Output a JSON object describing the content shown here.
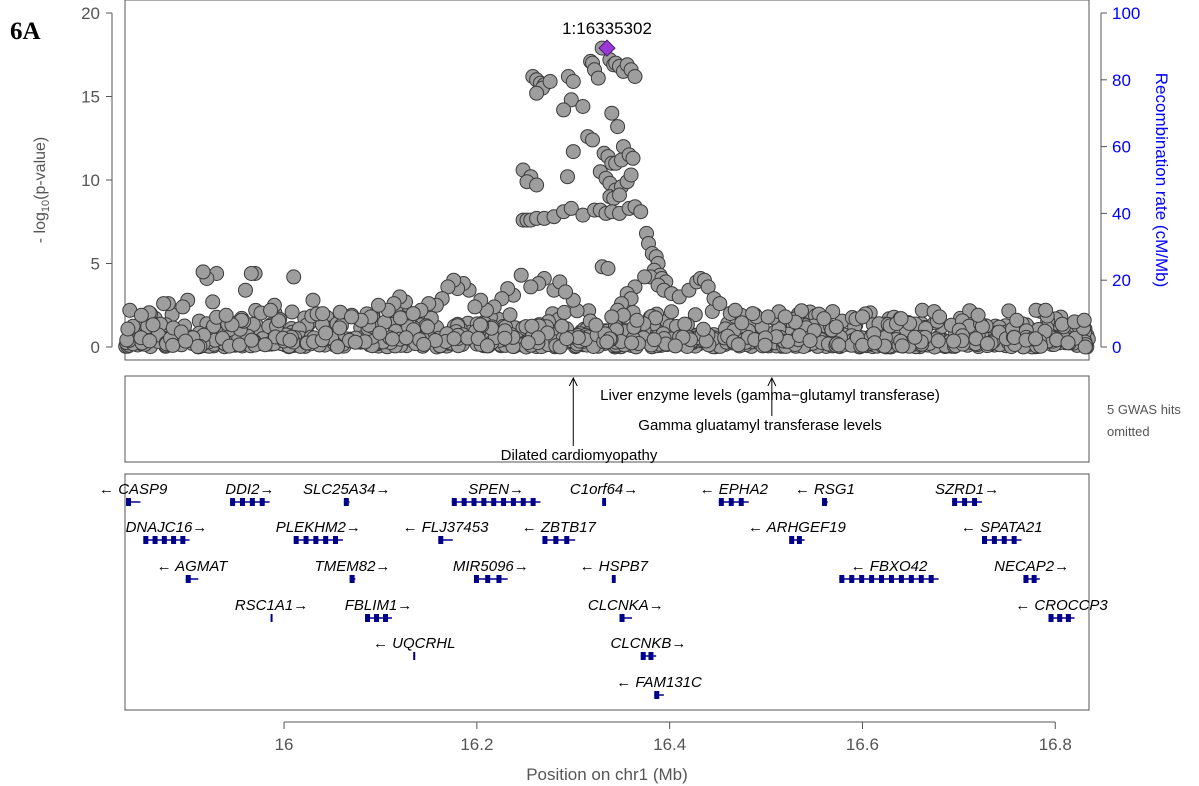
{
  "panel_tag": "6A",
  "colors": {
    "point_fill": "#9e9e9e",
    "point_stroke": "#3a3a3a",
    "lead_fill": "#9a38d8",
    "recomb_axis": "#0000ff",
    "gene": "#00008b"
  },
  "chart_data": {
    "type": "scatter",
    "xlabel": "Position on chr1 (Mb)",
    "ylabel_left": "- log10(p-value)",
    "ylabel_right": "Recombination rate (cM/Mb)",
    "xlim": [
      15.835,
      16.835
    ],
    "xticks": [
      16,
      16.2,
      16.4,
      16.6,
      16.8
    ],
    "xtick_labels": [
      "16",
      "16.2",
      "16.4",
      "16.6",
      "16.8"
    ],
    "ylim": [
      -0.5,
      20
    ],
    "yticks": [
      0,
      5,
      10,
      15,
      20
    ],
    "ytick_labels": [
      "0",
      "5",
      "10",
      "15",
      "20"
    ],
    "ylim_right": [
      0,
      100
    ],
    "yticks_right_labels": [
      "0",
      "20",
      "40",
      "60",
      "80",
      "100"
    ],
    "lead_snp": {
      "label": "1:16335302",
      "x": 16.335,
      "y": 17.9
    },
    "series": [
      {
        "kind": "high_points",
        "points": [
          [
            16.258,
            16.2
          ],
          [
            16.262,
            16.0
          ],
          [
            16.266,
            15.8
          ],
          [
            16.27,
            15.7
          ],
          [
            16.268,
            15.5
          ],
          [
            16.262,
            15.2
          ],
          [
            16.276,
            15.9
          ],
          [
            16.295,
            16.2
          ],
          [
            16.3,
            15.9
          ],
          [
            16.318,
            17.1
          ],
          [
            16.32,
            17.0
          ],
          [
            16.322,
            16.6
          ],
          [
            16.326,
            16.1
          ],
          [
            16.33,
            17.9
          ],
          [
            16.338,
            17.2
          ],
          [
            16.342,
            16.9
          ],
          [
            16.344,
            17.0
          ],
          [
            16.348,
            16.8
          ],
          [
            16.352,
            16.5
          ],
          [
            16.356,
            16.9
          ],
          [
            16.36,
            16.6
          ],
          [
            16.364,
            16.2
          ],
          [
            16.298,
            14.8
          ],
          [
            16.29,
            14.2
          ],
          [
            16.31,
            14.4
          ],
          [
            16.34,
            14.0
          ],
          [
            16.346,
            13.2
          ],
          [
            16.352,
            12.0
          ],
          [
            16.315,
            12.6
          ],
          [
            16.32,
            12.4
          ],
          [
            16.3,
            11.7
          ],
          [
            16.332,
            11.6
          ],
          [
            16.336,
            11.4
          ],
          [
            16.34,
            11.0
          ],
          [
            16.344,
            11.0
          ],
          [
            16.35,
            11.2
          ],
          [
            16.358,
            11.5
          ],
          [
            16.362,
            11.3
          ],
          [
            16.328,
            10.5
          ],
          [
            16.334,
            10.1
          ],
          [
            16.338,
            9.8
          ],
          [
            16.344,
            9.4
          ],
          [
            16.35,
            9.6
          ],
          [
            16.356,
            9.9
          ],
          [
            16.36,
            10.3
          ],
          [
            16.248,
            10.6
          ],
          [
            16.256,
            10.2
          ],
          [
            16.252,
            9.9
          ],
          [
            16.262,
            9.7
          ],
          [
            16.294,
            10.2
          ],
          [
            16.338,
            9.0
          ],
          [
            16.342,
            8.9
          ],
          [
            16.348,
            9.1
          ],
          [
            16.248,
            7.6
          ],
          [
            16.252,
            7.6
          ],
          [
            16.256,
            7.6
          ],
          [
            16.262,
            7.7
          ],
          [
            16.27,
            7.7
          ],
          [
            16.28,
            7.8
          ],
          [
            16.29,
            8.1
          ],
          [
            16.298,
            8.3
          ],
          [
            16.31,
            7.9
          ],
          [
            16.322,
            8.2
          ],
          [
            16.328,
            8.2
          ],
          [
            16.334,
            8.0
          ],
          [
            16.34,
            8.1
          ],
          [
            16.348,
            8.0
          ],
          [
            16.358,
            8.3
          ],
          [
            16.364,
            8.4
          ],
          [
            16.37,
            8.1
          ],
          [
            16.376,
            6.8
          ],
          [
            16.378,
            6.2
          ],
          [
            16.382,
            5.6
          ],
          [
            16.386,
            5.4
          ],
          [
            16.388,
            5.0
          ],
          [
            16.384,
            4.6
          ],
          [
            16.39,
            4.3
          ],
          [
            16.38,
            4.2
          ],
          [
            16.392,
            4.1
          ],
          [
            16.396,
            3.9
          ],
          [
            16.388,
            3.7
          ],
          [
            16.394,
            3.4
          ],
          [
            16.402,
            3.2
          ],
          [
            16.41,
            3.0
          ],
          [
            16.42,
            3.4
          ],
          [
            16.428,
            3.9
          ],
          [
            16.432,
            4.1
          ],
          [
            16.436,
            4.0
          ],
          [
            16.44,
            3.6
          ],
          [
            16.446,
            2.9
          ],
          [
            16.452,
            2.6
          ],
          [
            16.33,
            4.8
          ],
          [
            16.336,
            4.7
          ],
          [
            16.374,
            4.2
          ],
          [
            16.364,
            3.6
          ],
          [
            16.356,
            3.2
          ],
          [
            16.36,
            2.9
          ],
          [
            16.35,
            2.6
          ],
          [
            16.346,
            2.2
          ],
          [
            16.352,
            1.9
          ],
          [
            16.366,
            1.6
          ],
          [
            16.34,
            1.8
          ],
          [
            16.3,
            2.8
          ],
          [
            16.28,
            3.4
          ],
          [
            16.286,
            3.9
          ],
          [
            16.292,
            3.3
          ],
          [
            16.27,
            4.1
          ],
          [
            16.264,
            3.8
          ],
          [
            16.256,
            3.6
          ],
          [
            16.246,
            4.3
          ],
          [
            16.238,
            3.1
          ],
          [
            16.232,
            3.5
          ],
          [
            16.226,
            2.9
          ],
          [
            16.218,
            2.4
          ],
          [
            16.21,
            2.2
          ],
          [
            16.204,
            2.8
          ],
          [
            16.198,
            2.4
          ],
          [
            16.192,
            3.4
          ],
          [
            16.186,
            3.8
          ],
          [
            16.18,
            3.5
          ],
          [
            16.176,
            4.0
          ],
          [
            16.17,
            3.6
          ],
          [
            16.164,
            2.9
          ],
          [
            16.158,
            2.5
          ],
          [
            16.15,
            2.6
          ],
          [
            16.142,
            2.2
          ],
          [
            16.134,
            2.0
          ],
          [
            16.126,
            2.7
          ],
          [
            16.12,
            3.0
          ],
          [
            16.114,
            2.6
          ],
          [
            16.108,
            2.2
          ],
          [
            16.098,
            2.5
          ],
          [
            16.09,
            1.8
          ],
          [
            16.08,
            1.6
          ],
          [
            16.07,
            1.8
          ],
          [
            16.04,
            2.0
          ],
          [
            16.03,
            2.8
          ],
          [
            16.01,
            4.2
          ],
          [
            15.99,
            2.5
          ],
          [
            15.986,
            2.2
          ],
          [
            15.97,
            4.4
          ],
          [
            15.966,
            4.4
          ],
          [
            15.96,
            3.4
          ],
          [
            15.93,
            4.4
          ],
          [
            15.92,
            4.1
          ],
          [
            15.916,
            4.5
          ],
          [
            15.926,
            2.7
          ],
          [
            15.94,
            1.9
          ],
          [
            15.9,
            2.8
          ],
          [
            15.895,
            2.4
          ],
          [
            15.88,
            2.6
          ],
          [
            15.875,
            2.6
          ],
          [
            15.84,
            2.2
          ],
          [
            15.852,
            1.9
          ],
          [
            16.468,
            2.2
          ],
          [
            16.486,
            2.0
          ],
          [
            16.502,
            1.8
          ],
          [
            16.52,
            1.8
          ],
          [
            16.56,
            1.7
          ],
          [
            16.6,
            1.8
          ],
          [
            16.64,
            1.7
          ],
          [
            16.68,
            1.8
          ],
          [
            16.72,
            1.9
          ],
          [
            16.76,
            1.6
          ],
          [
            16.78,
            2.2
          ],
          [
            16.79,
            2.2
          ],
          [
            16.82,
            1.5
          ],
          [
            16.83,
            1.6
          ]
        ]
      }
    ],
    "gwas_annotations": [
      "Liver enzyme levels (gamma−glutamyl transferase)",
      "Gamma gluatamyl transferase levels",
      "Dilated cardiomyopathy"
    ],
    "gwas_note": [
      "5 GWAS hits",
      "omitted"
    ],
    "genes": [
      {
        "name": "CASP9",
        "strand": "-",
        "start": 15.834,
        "end": 15.851,
        "row": 0
      },
      {
        "name": "DDI2",
        "strand": "+",
        "start": 15.944,
        "end": 15.985,
        "row": 0
      },
      {
        "name": "SLC25A34",
        "strand": "+",
        "start": 16.062,
        "end": 16.068,
        "row": 0
      },
      {
        "name": "SPEN",
        "strand": "+",
        "start": 16.174,
        "end": 16.266,
        "row": 0
      },
      {
        "name": "C1orf64",
        "strand": "+",
        "start": 16.33,
        "end": 16.334,
        "row": 0
      },
      {
        "name": "EPHA2",
        "strand": "-",
        "start": 16.451,
        "end": 16.482,
        "row": 0
      },
      {
        "name": "RSG1",
        "strand": "-",
        "start": 16.558,
        "end": 16.564,
        "row": 0
      },
      {
        "name": "SZRD1",
        "strand": "+",
        "start": 16.693,
        "end": 16.724,
        "row": 0
      },
      {
        "name": "DNAJC16",
        "strand": "+",
        "start": 15.854,
        "end": 15.902,
        "row": 1
      },
      {
        "name": "PLEKHM2",
        "strand": "+",
        "start": 16.01,
        "end": 16.061,
        "row": 1
      },
      {
        "name": "FLJ37453",
        "strand": "-",
        "start": 16.16,
        "end": 16.175,
        "row": 1
      },
      {
        "name": "ZBTB17",
        "strand": "-",
        "start": 16.268,
        "end": 16.302,
        "row": 1
      },
      {
        "name": "ARHGEF19",
        "strand": "-",
        "start": 16.524,
        "end": 16.54,
        "row": 1
      },
      {
        "name": "SPATA21",
        "strand": "-",
        "start": 16.724,
        "end": 16.765,
        "row": 1
      },
      {
        "name": "AGMAT",
        "strand": "-",
        "start": 15.898,
        "end": 15.911,
        "row": 2
      },
      {
        "name": "TMEM82",
        "strand": "+",
        "start": 16.068,
        "end": 16.074,
        "row": 2
      },
      {
        "name": "MIR5096",
        "strand": "+",
        "start": 16.197,
        "end": 16.232,
        "row": 2
      },
      {
        "name": "HSPB7",
        "strand": "-",
        "start": 16.34,
        "end": 16.344,
        "row": 2
      },
      {
        "name": "FBXO42",
        "strand": "-",
        "start": 16.576,
        "end": 16.679,
        "row": 2
      },
      {
        "name": "NECAP2",
        "strand": "+",
        "start": 16.767,
        "end": 16.784,
        "row": 2
      },
      {
        "name": "RSC1A1",
        "strand": "+",
        "start": 15.986,
        "end": 15.988,
        "row": 3
      },
      {
        "name": "FBLIM1",
        "strand": "+",
        "start": 16.084,
        "end": 16.112,
        "row": 3
      },
      {
        "name": "CLCNKA",
        "strand": "+",
        "start": 16.348,
        "end": 16.361,
        "row": 3
      },
      {
        "name": "CROCCP3",
        "strand": "-",
        "start": 16.793,
        "end": 16.82,
        "row": 3
      },
      {
        "name": "UQCRHL",
        "strand": "-",
        "start": 16.134,
        "end": 16.136,
        "row": 4
      },
      {
        "name": "CLCNKB",
        "strand": "+",
        "start": 16.37,
        "end": 16.386,
        "row": 4
      },
      {
        "name": "FAM131C",
        "strand": "-",
        "start": 16.384,
        "end": 16.394,
        "row": 5
      }
    ]
  }
}
